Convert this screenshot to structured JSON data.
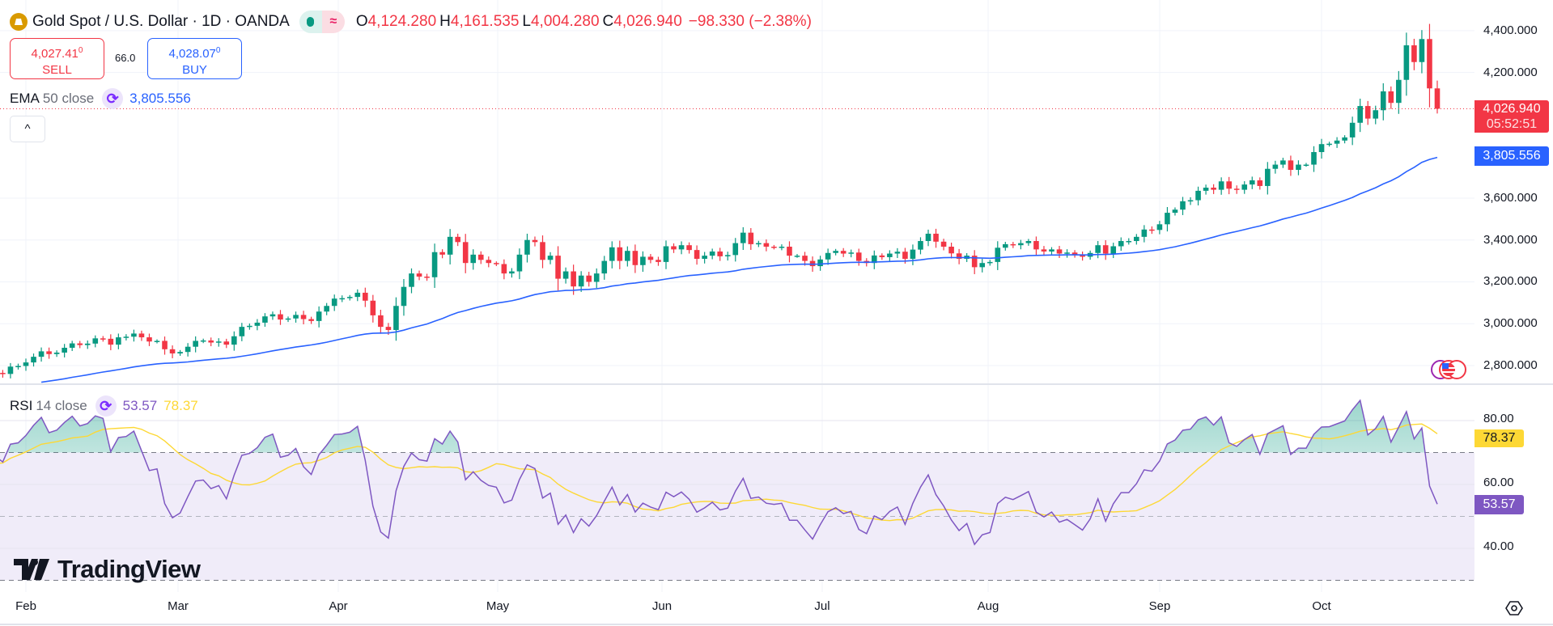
{
  "header": {
    "title": "Gold Spot / U.S. Dollar · 1D · OANDA",
    "market_status_icon": "market-open-dot",
    "delay_icon": "approx-icon",
    "delay_glyph": "≈",
    "ohlc": [
      {
        "key": "O",
        "value": "4,124.280"
      },
      {
        "key": "H",
        "value": "4,161.535"
      },
      {
        "key": "L",
        "value": "4,004.280"
      },
      {
        "key": "C",
        "value": "4,026.940"
      }
    ],
    "change": "−98.330 (−2.38%)"
  },
  "trade": {
    "sell_price": "4,027.41",
    "sell_price_sup": "0",
    "sell_label": "SELL",
    "spread": "66.0",
    "buy_price": "4,028.07",
    "buy_price_sup": "0",
    "buy_label": "BUY"
  },
  "ema": {
    "name": "EMA",
    "params": "50 close",
    "value": "3,805.556",
    "length": 50
  },
  "collapse_glyph": "^",
  "rsi": {
    "name": "RSI",
    "params": "14 close",
    "value": "53.57",
    "ma_value": "78.37",
    "length": 14
  },
  "price_axis": [
    "4,400.000",
    "4,200.000",
    "3,600.000",
    "3,400.000",
    "3,200.000",
    "3,000.000",
    "2,800.000"
  ],
  "price_axis_values": [
    4400,
    4200,
    3600,
    3400,
    3200,
    3000,
    2800
  ],
  "last_price_tag": {
    "price": "4,026.940",
    "countdown": "05:52:51"
  },
  "ema_tag": "3,805.556",
  "rsi_axis": [
    {
      "label": "80.00",
      "value": 80
    },
    {
      "label": "60.00",
      "value": 60
    },
    {
      "label": "40.00",
      "value": 40
    }
  ],
  "rsi_bands": [
    70,
    50,
    30
  ],
  "rsi_tags": {
    "ma": "78.37",
    "rsi": "53.57"
  },
  "time_axis": [
    "Feb",
    "Mar",
    "Apr",
    "May",
    "Jun",
    "Jul",
    "Aug",
    "Sep",
    "Oct"
  ],
  "logo": "TradingView",
  "colors": {
    "up": "#089981",
    "down": "#f23645",
    "ema": "#2962ff",
    "rsi": "#7e57c2",
    "rsi_ma": "#fdd835",
    "band_fill": "#f0ecf9",
    "overbought_fill": "#089981"
  },
  "chart_data": {
    "type": "candlestick",
    "last_candle": {
      "open": 4124.28,
      "high": 4161.535,
      "low": 4004.28,
      "close": 4026.94
    },
    "closes": [
      2740,
      2765,
      2760,
      2795,
      2798,
      2815,
      2842,
      2868,
      2855,
      2862,
      2885,
      2906,
      2898,
      2905,
      2930,
      2928,
      2900,
      2935,
      2938,
      2953,
      2935,
      2915,
      2918,
      2878,
      2858,
      2865,
      2890,
      2918,
      2920,
      2910,
      2915,
      2900,
      2940,
      2985,
      2990,
      3005,
      3035,
      3045,
      3020,
      3025,
      3042,
      3022,
      3013,
      3058,
      3085,
      3120,
      3122,
      3128,
      3148,
      3110,
      3040,
      2985,
      2970,
      3085,
      3176,
      3240,
      3225,
      3222,
      3342,
      3330,
      3415,
      3390,
      3290,
      3330,
      3305,
      3290,
      3285,
      3240,
      3250,
      3330,
      3400,
      3390,
      3305,
      3325,
      3215,
      3250,
      3178,
      3230,
      3200,
      3240,
      3300,
      3365,
      3300,
      3348,
      3280,
      3320,
      3305,
      3295,
      3370,
      3355,
      3375,
      3352,
      3310,
      3325,
      3345,
      3322,
      3328,
      3385,
      3435,
      3380,
      3385,
      3368,
      3365,
      3368,
      3325,
      3325,
      3300,
      3275,
      3307,
      3338,
      3348,
      3335,
      3340,
      3300,
      3290,
      3326,
      3318,
      3335,
      3344,
      3310,
      3354,
      3395,
      3430,
      3392,
      3368,
      3336,
      3310,
      3325,
      3270,
      3290,
      3295,
      3363,
      3380,
      3375,
      3385,
      3395,
      3355,
      3345,
      3355,
      3335,
      3340,
      3330,
      3320,
      3338,
      3375,
      3335,
      3370,
      3395,
      3395,
      3415,
      3450,
      3448,
      3475,
      3530,
      3545,
      3585,
      3590,
      3635,
      3650,
      3640,
      3680,
      3645,
      3640,
      3665,
      3685,
      3658,
      3740,
      3760,
      3780,
      3735,
      3760,
      3760,
      3820,
      3858,
      3860,
      3875,
      3890,
      3960,
      4040,
      3980,
      4020,
      4110,
      4055,
      4165,
      4330,
      4250,
      4360,
      4124.28,
      4026.94
    ],
    "ylim": [
      2760,
      4420
    ],
    "rsi_ylim": [
      30,
      85
    ]
  }
}
